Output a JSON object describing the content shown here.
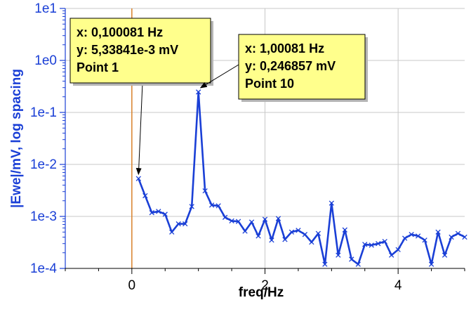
{
  "chart_data": {
    "type": "line",
    "xlabel": "freq/Hz",
    "ylabel": "|Ewe|/mV, log spacing",
    "xlim": [
      -1,
      5
    ],
    "ylim": [
      0.0001,
      10
    ],
    "yscale": "log",
    "grid": true,
    "x_ticks": [
      "0",
      "2",
      "4"
    ],
    "y_ticks": [
      "1e-4",
      "1e-3",
      "1e-2",
      "1e-1",
      "1e0",
      "1e1"
    ],
    "series": [
      {
        "color": "#1a3fd6",
        "x": [
          0.1,
          0.2,
          0.3,
          0.4,
          0.5,
          0.6,
          0.7,
          0.8,
          0.9,
          1.0,
          1.1,
          1.2,
          1.3,
          1.4,
          1.5,
          1.6,
          1.7,
          1.8,
          1.9,
          2.0,
          2.1,
          2.2,
          2.3,
          2.4,
          2.5,
          2.6,
          2.7,
          2.8,
          2.9,
          3.0,
          3.1,
          3.2,
          3.3,
          3.4,
          3.5,
          3.6,
          3.7,
          3.8,
          3.9,
          4.0,
          4.1,
          4.2,
          4.3,
          4.4,
          4.5,
          4.6,
          4.7,
          4.8,
          4.9,
          5.0
        ],
        "y": [
          0.00534,
          0.0025,
          0.00118,
          0.00125,
          0.0011,
          0.0005,
          0.00072,
          0.00072,
          0.00155,
          0.247,
          0.0031,
          0.00165,
          0.0016,
          0.00096,
          0.00082,
          0.0008,
          0.00052,
          0.00078,
          0.00042,
          0.00088,
          0.00035,
          0.00091,
          0.00036,
          0.0005,
          0.00054,
          0.00045,
          0.00032,
          0.00047,
          0.00012,
          0.0018,
          0.00018,
          0.00055,
          0.00015,
          0.00012,
          0.00029,
          0.00028,
          0.0003,
          0.00033,
          0.00018,
          0.00023,
          0.00038,
          0.00045,
          0.00042,
          0.00035,
          0.00012,
          0.0005,
          0.00018,
          0.0004,
          0.00047,
          0.0004
        ]
      }
    ],
    "vertical_marker": {
      "x": 0,
      "color": "#d9822b"
    },
    "annotations": [
      {
        "point_index": 0,
        "lines": [
          "x: 0,100081 Hz",
          "y: 5,33841e-3 mV",
          "Point 1"
        ]
      },
      {
        "point_index": 9,
        "lines": [
          "x: 1,00081 Hz",
          "y: 0,246857 mV",
          "Point 10"
        ]
      }
    ]
  }
}
